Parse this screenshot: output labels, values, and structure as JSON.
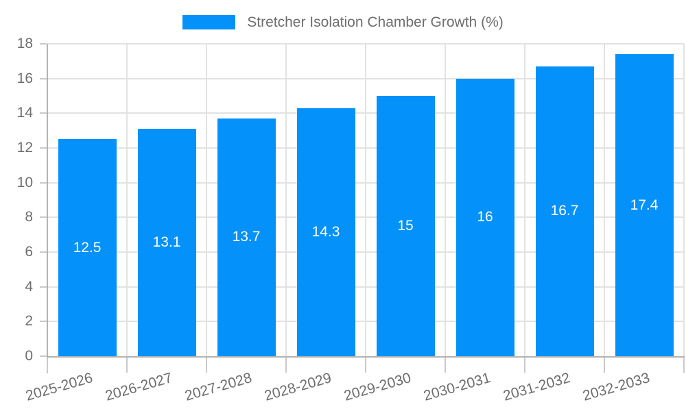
{
  "chart_data": {
    "type": "bar",
    "title": "",
    "legend": {
      "label": "Stretcher Isolation Chamber Growth (%)",
      "position": "top-center"
    },
    "categories": [
      "2025-2026",
      "2026-2027",
      "2027-2028",
      "2028-2029",
      "2029-2030",
      "2030-2031",
      "2031-2032",
      "2032-2033"
    ],
    "values": [
      12.5,
      13.1,
      13.7,
      14.3,
      15,
      16,
      16.7,
      17.4
    ],
    "value_labels": [
      "12.5",
      "13.1",
      "13.7",
      "14.3",
      "15",
      "16",
      "16.7",
      "17.4"
    ],
    "xlabel": "",
    "ylabel": "",
    "ylim": [
      0,
      18
    ],
    "yticks": [
      0,
      2,
      4,
      6,
      8,
      10,
      12,
      14,
      16,
      18
    ],
    "grid": true,
    "x_label_rotation_deg": -16,
    "colors": {
      "bar": "#0591fa",
      "grid": "#e2e2e2",
      "axis": "#b3b3b3",
      "tick": "#c9c9c9",
      "text": "#6e6e6e",
      "bar_label_text": "#ffffff",
      "background": "#ffffff"
    }
  }
}
